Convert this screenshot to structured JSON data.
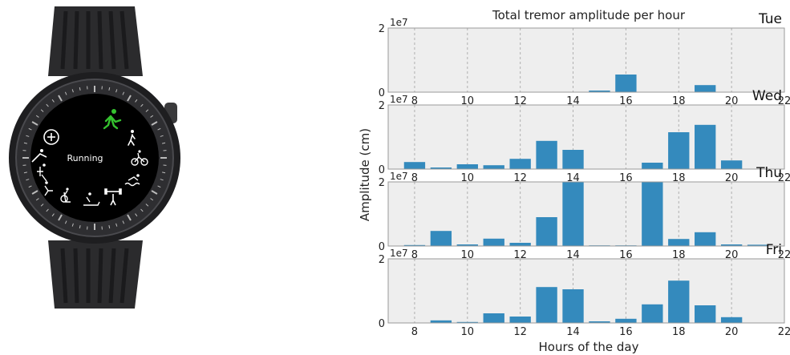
{
  "watch": {
    "app_label": "Running",
    "icons": [
      "add-icon",
      "running-icon",
      "walking-icon",
      "cycling-icon",
      "swimming-icon",
      "weightlifting-icon",
      "treadmill-icon",
      "elliptical-icon",
      "squat-icon",
      "dumbbell-icon",
      "rowing-icon"
    ],
    "colors": {
      "accent": "#35c22f",
      "screen": "#000000",
      "bezel": "#2a2a2c"
    }
  },
  "chart_data": {
    "type": "bar",
    "title": "Total tremor amplitude per hour",
    "xlabel": "Hours of the day",
    "ylabel": "Amplitude (cm)",
    "y_scale_label": "1e7",
    "xlim": [
      7,
      22
    ],
    "ylim": [
      0,
      2
    ],
    "xticks": [
      8,
      10,
      12,
      14,
      16,
      18,
      20,
      22
    ],
    "yticks": [
      0,
      2
    ],
    "grid": true,
    "colors": {
      "bar": "#348abd",
      "panel_bg": "#eeeeee",
      "grid": "#b0b0b0"
    },
    "x": [
      8,
      9,
      10,
      11,
      12,
      13,
      14,
      15,
      16,
      17,
      18,
      19,
      20,
      21
    ],
    "series": [
      {
        "name": "Tue",
        "values": [
          0,
          0,
          0,
          0,
          0,
          0,
          0,
          0.05,
          0.55,
          0,
          0,
          0.22,
          0,
          0
        ]
      },
      {
        "name": "Wed",
        "values": [
          0.22,
          0.05,
          0.15,
          0.12,
          0.32,
          0.88,
          0.6,
          0,
          0,
          0.2,
          1.15,
          1.38,
          0.27,
          0
        ]
      },
      {
        "name": "Thu",
        "values": [
          0.03,
          0.47,
          0.05,
          0.23,
          0.1,
          0.9,
          2.0,
          0.02,
          0.02,
          2.0,
          0.22,
          0.43,
          0.05,
          0.04
        ]
      },
      {
        "name": "Fri",
        "values": [
          0,
          0.08,
          0.03,
          0.3,
          0.2,
          1.12,
          1.05,
          0.05,
          0.13,
          0.58,
          1.32,
          0.55,
          0.18,
          0
        ]
      }
    ]
  }
}
